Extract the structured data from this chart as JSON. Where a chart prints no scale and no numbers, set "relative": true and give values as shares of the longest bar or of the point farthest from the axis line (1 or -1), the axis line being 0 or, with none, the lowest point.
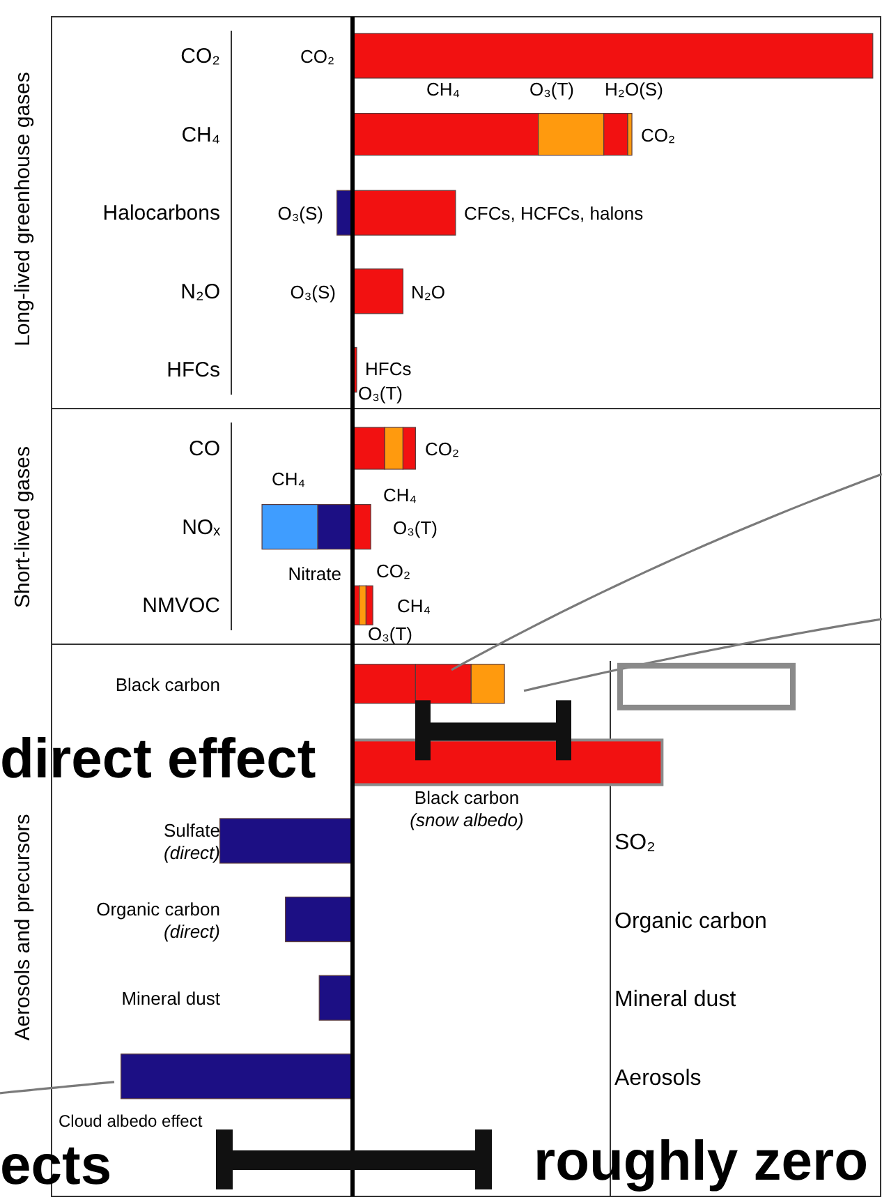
{
  "chart_data": {
    "type": "bar",
    "orientation": "horizontal",
    "stacked": true,
    "relative": true,
    "categories": [
      "CO₂",
      "CH₄",
      "Halocarbons",
      "N₂O",
      "HFCs",
      "CO",
      "NOₓ",
      "NMVOC",
      "Black carbon",
      null,
      "Sulfate\n(direct)",
      "Organic carbon\n(direct)",
      "Mineral dust",
      "Cloud albedo effect"
    ],
    "series": [
      {
        "color": "#f21111",
        "values": [
          1.0,
          0.357,
          0.198,
          0.097,
          0.008,
          0.062,
          0.035,
          0.013,
          0.121,
          0.595,
          null,
          null,
          null,
          null
        ]
      },
      {
        "color": "#ff9a0e",
        "values": [
          null,
          0.126,
          null,
          null,
          null,
          0.035,
          null,
          0.013,
          null,
          null,
          null,
          null,
          null,
          null
        ]
      },
      {
        "color": "#f21111",
        "values": [
          null,
          0.046,
          null,
          null,
          null,
          0.024,
          null,
          0.013,
          0.107,
          null,
          null,
          null,
          null,
          null
        ]
      },
      {
        "color": "#ff9a0e",
        "values": [
          null,
          0.008,
          null,
          null,
          null,
          null,
          null,
          null,
          0.064,
          null,
          null,
          null,
          null,
          null
        ]
      },
      {
        "color": "#1c0f84",
        "values": [
          null,
          null,
          -0.03,
          null,
          null,
          null,
          -0.067,
          null,
          null,
          null,
          -0.255,
          -0.129,
          -0.064,
          -0.445
        ]
      },
      {
        "color": "#3f9dff",
        "values": [
          null,
          null,
          null,
          null,
          null,
          null,
          -0.107,
          null,
          null,
          null,
          null,
          null,
          null,
          null
        ]
      }
    ],
    "annotations": [
      "CO₂",
      "CH₄",
      "O₃(T)",
      "H₂O(S)",
      "CO₂",
      "O₃(S)",
      "CFCs, HCFCs, halons",
      "O₃(S)",
      "N₂O",
      "HFCs",
      "O₃(T)",
      "CO₂",
      "CH₄",
      "CH₄",
      "O₃(T)",
      "Nitrate",
      "CO₂",
      "CH₄",
      "O₃(T)",
      "Black carbon\n(snow albedo)",
      "Long-lived greenhouse gases",
      "Short-lived gases",
      "Aerosols and precursors",
      "SO₂",
      "Organic carbon",
      "Mineral dust",
      "Aerosols",
      "direct effect",
      "ects",
      "roughly zero"
    ]
  }
}
